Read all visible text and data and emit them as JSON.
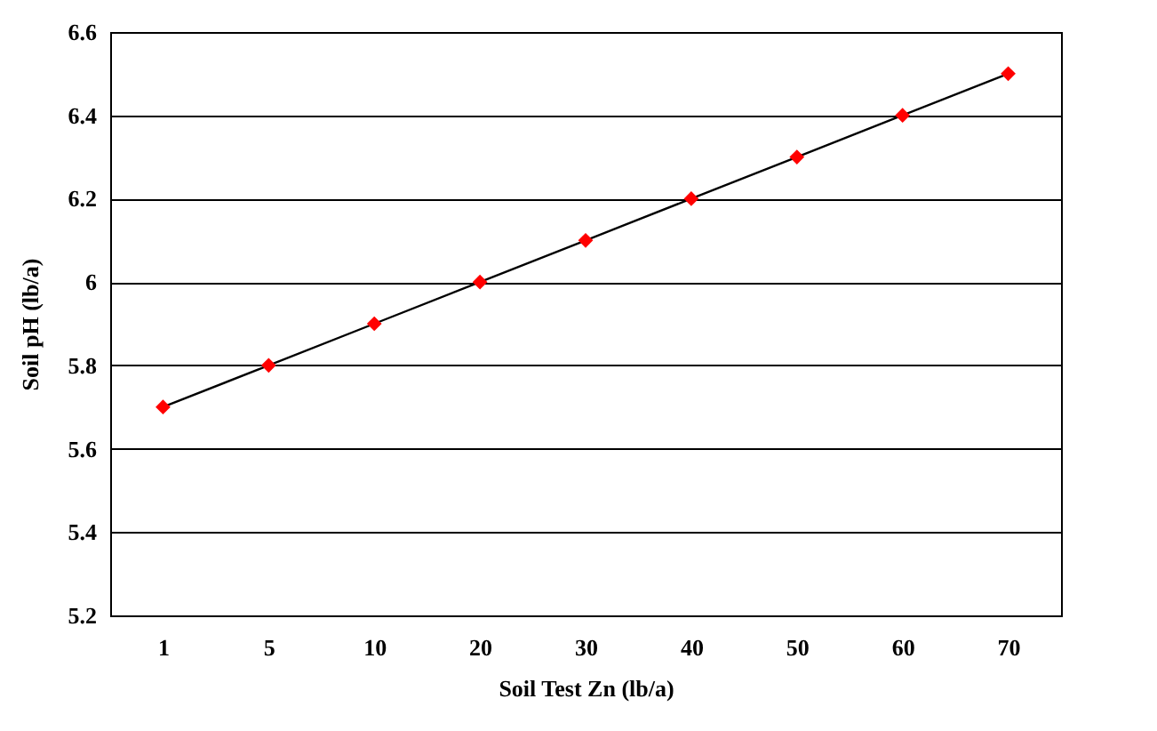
{
  "chart_data": {
    "type": "line",
    "xlabel": "Soil Test Zn (lb/a)",
    "ylabel": "Soil pH (lb/a)",
    "categories": [
      "1",
      "5",
      "10",
      "20",
      "30",
      "40",
      "50",
      "60",
      "70"
    ],
    "series": [
      {
        "color": "#000000",
        "marker": "none",
        "values": [
          5.7,
          5.8,
          5.9,
          6.0,
          6.1,
          6.2,
          6.3,
          6.4,
          6.5
        ]
      },
      {
        "type": "scatter",
        "color": "#ff0000",
        "marker": "diamond",
        "values": [
          5.7,
          5.8,
          5.9,
          6.0,
          6.1,
          6.2,
          6.3,
          6.4,
          6.5
        ]
      }
    ],
    "ylim": [
      5.2,
      6.6
    ],
    "yticks": [
      5.2,
      5.4,
      5.6,
      5.8,
      6,
      6.2,
      6.4,
      6.6
    ],
    "grid": "y"
  }
}
